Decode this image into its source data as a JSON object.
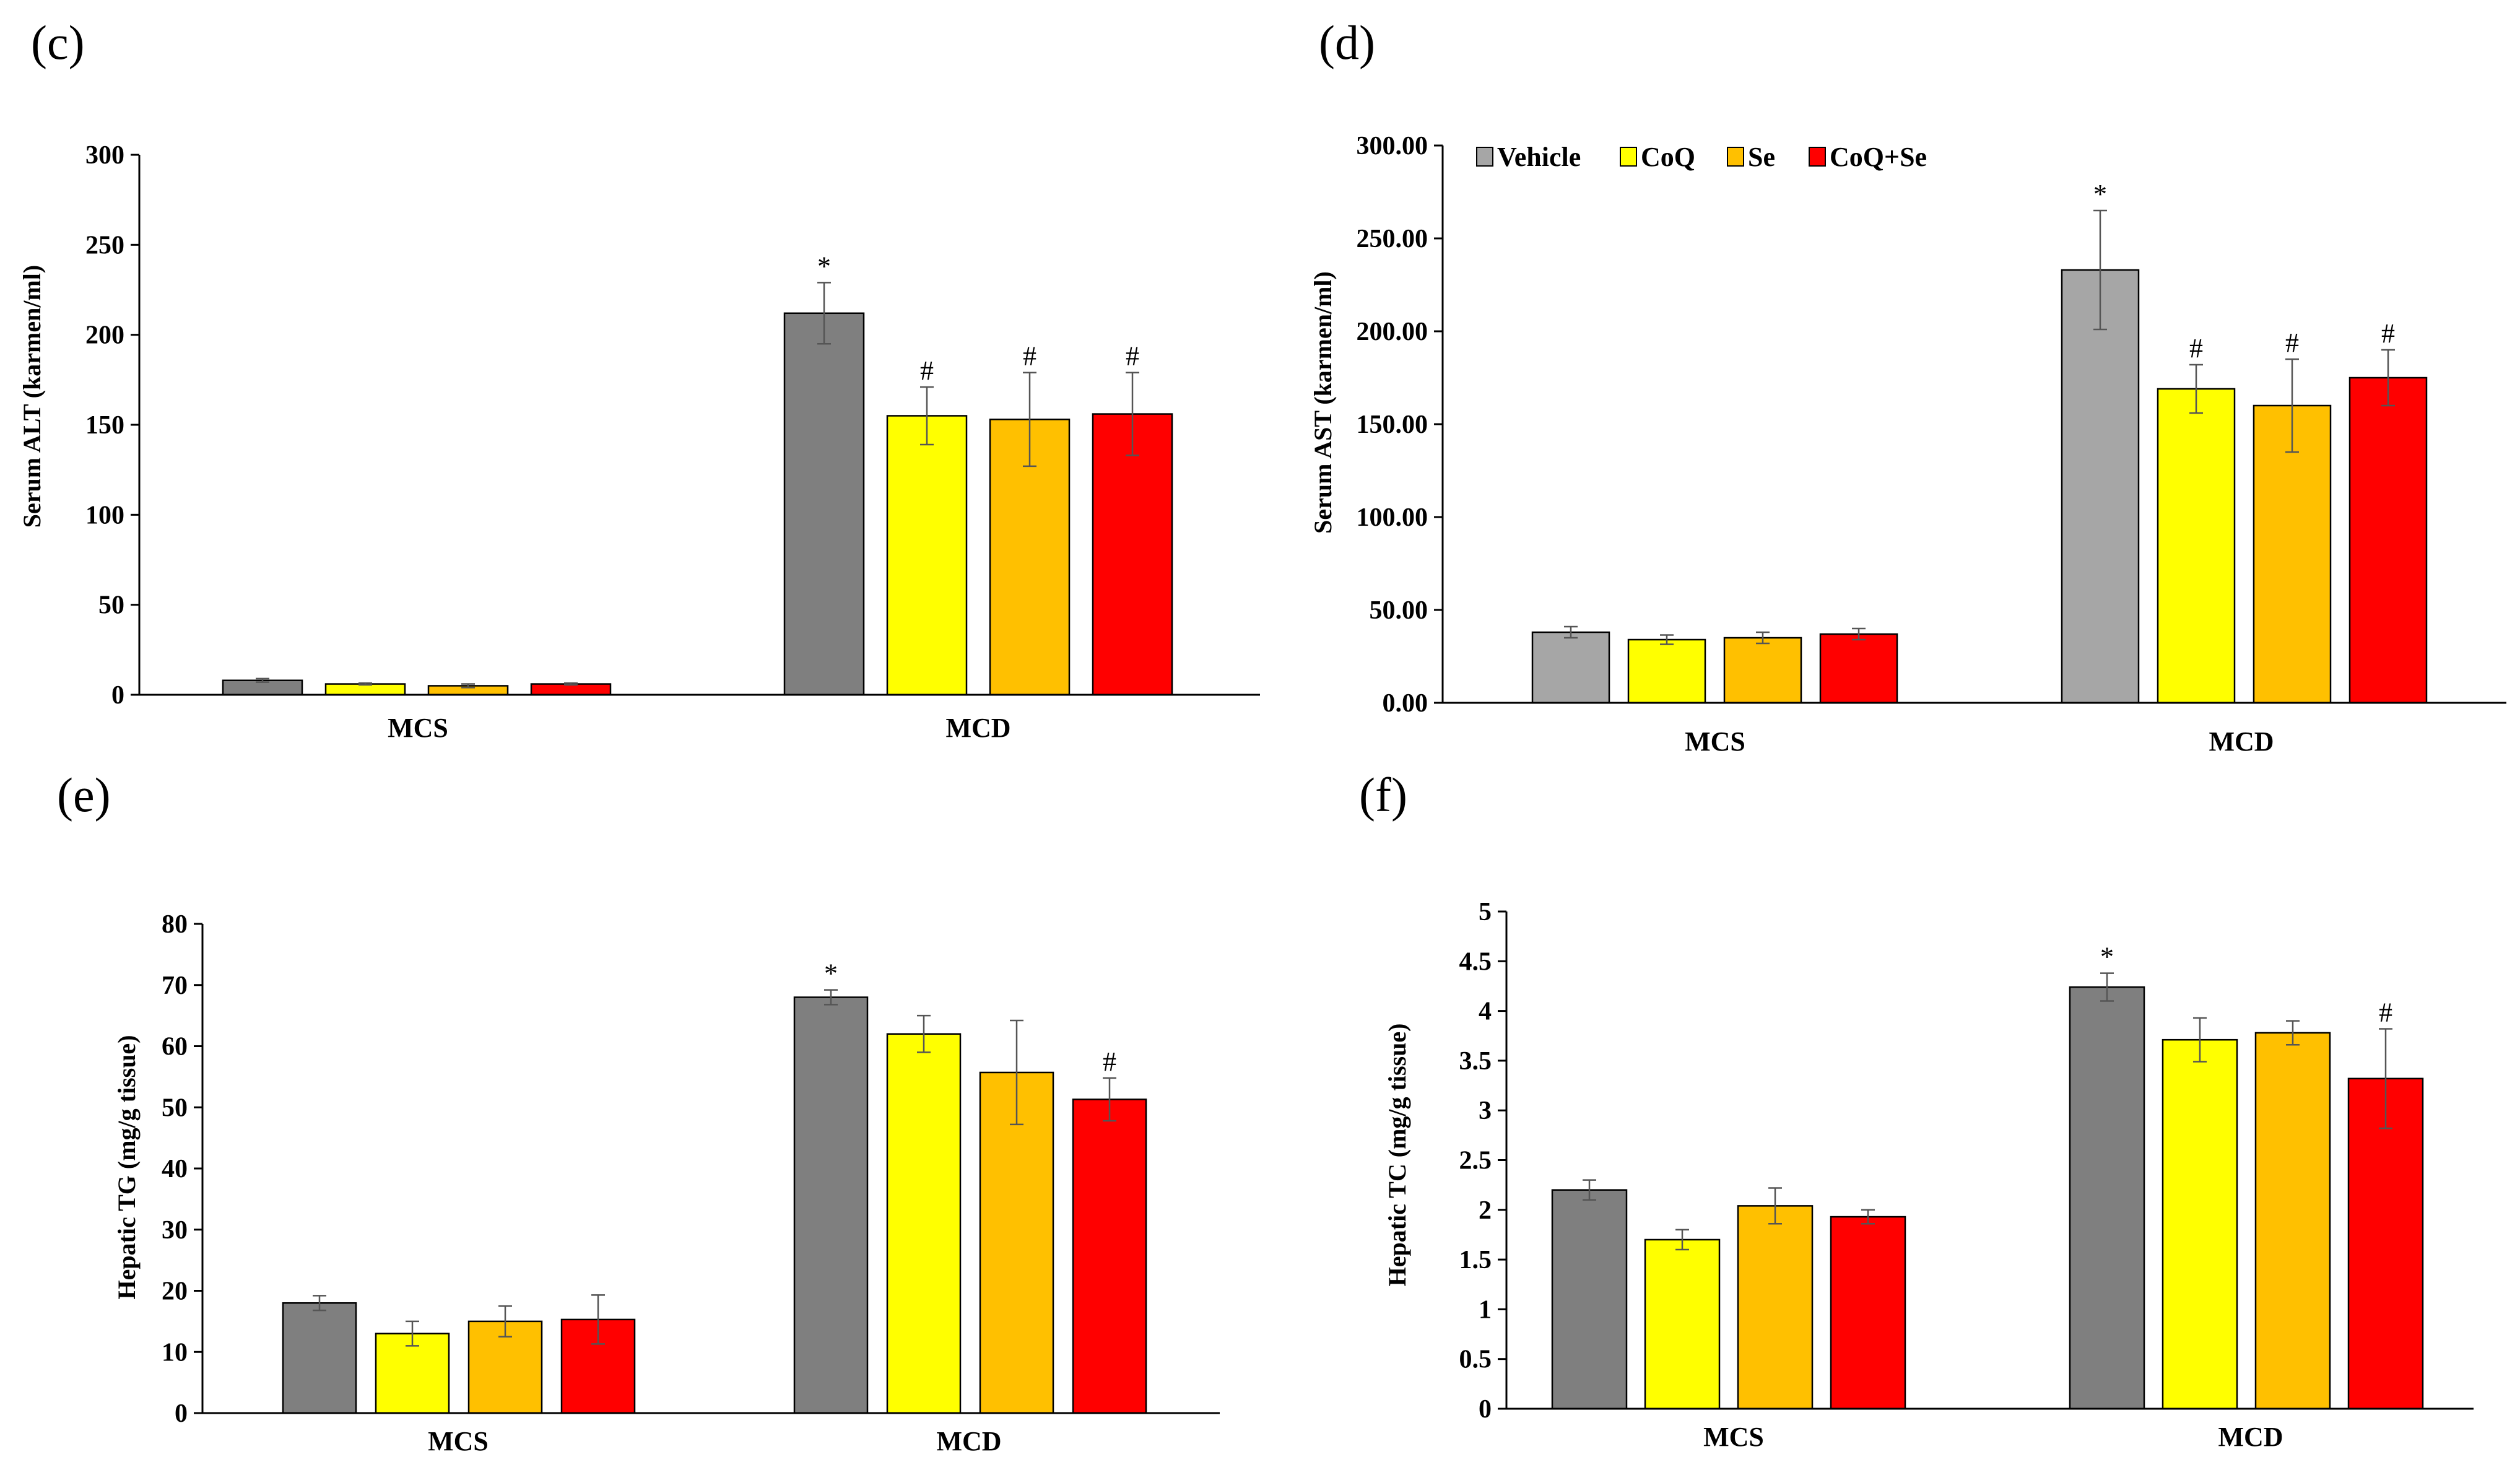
{
  "colors": {
    "vehicle_dark": "#7f7f7f",
    "vehicle_light": "#a6a6a6",
    "coq": "#ffff00",
    "se": "#ffc000",
    "coq_se": "#ff0000",
    "axis": "#000000",
    "error": "#555555"
  },
  "chart_data": [
    {
      "panel": "(c)",
      "type": "bar",
      "title": "",
      "xlabel": "",
      "ylabel": "Serum ALT (karmen/ml)",
      "ylim": [
        0,
        300
      ],
      "yticks": [
        "0",
        "50",
        "100",
        "150",
        "200",
        "250",
        "300"
      ],
      "categories": [
        "MCS",
        "MCD"
      ],
      "legend": false,
      "series": [
        {
          "name": "Vehicle",
          "color_key": "vehicle_dark",
          "values": [
            8,
            212
          ],
          "errors": [
            1,
            17
          ],
          "marks": [
            "",
            "*"
          ]
        },
        {
          "name": "CoQ",
          "color_key": "coq",
          "values": [
            6,
            155
          ],
          "errors": [
            0.5,
            16
          ],
          "marks": [
            "",
            "#"
          ]
        },
        {
          "name": "Se",
          "color_key": "se",
          "values": [
            5,
            153
          ],
          "errors": [
            1,
            26
          ],
          "marks": [
            "",
            "#"
          ]
        },
        {
          "name": "CoQ+Se",
          "color_key": "coq_se",
          "values": [
            6,
            156
          ],
          "errors": [
            0.5,
            23
          ],
          "marks": [
            "",
            "#"
          ]
        }
      ]
    },
    {
      "panel": "(d)",
      "type": "bar",
      "title": "",
      "xlabel": "",
      "ylabel": "Serum AST (karmen/ml)",
      "ylim": [
        0,
        300
      ],
      "yticks": [
        "0.00",
        "50.00",
        "100.00",
        "150.00",
        "200.00",
        "250.00",
        "300.00"
      ],
      "categories": [
        "MCS",
        "MCD"
      ],
      "legend": true,
      "legend_position": "top-left",
      "series": [
        {
          "name": "Vehicle",
          "color_key": "vehicle_light",
          "values": [
            38,
            233
          ],
          "errors": [
            3,
            32
          ],
          "marks": [
            "",
            "*"
          ]
        },
        {
          "name": "CoQ",
          "color_key": "coq",
          "values": [
            34,
            169
          ],
          "errors": [
            2.5,
            13
          ],
          "marks": [
            "",
            "#"
          ]
        },
        {
          "name": "Se",
          "color_key": "se",
          "values": [
            35,
            160
          ],
          "errors": [
            3,
            25
          ],
          "marks": [
            "",
            "#"
          ]
        },
        {
          "name": "CoQ+Se",
          "color_key": "coq_se",
          "values": [
            37,
            175
          ],
          "errors": [
            3,
            15
          ],
          "marks": [
            "",
            "#"
          ]
        }
      ]
    },
    {
      "panel": "(e)",
      "type": "bar",
      "title": "",
      "xlabel": "",
      "ylabel": "Hepatic TG (mg/g tissue)",
      "ylim": [
        0,
        80
      ],
      "yticks": [
        "0",
        "10",
        "20",
        "30",
        "40",
        "50",
        "60",
        "70",
        "80"
      ],
      "categories": [
        "MCS",
        "MCD"
      ],
      "legend": false,
      "series": [
        {
          "name": "Vehicle",
          "color_key": "vehicle_dark",
          "values": [
            18,
            68
          ],
          "errors": [
            1.2,
            1.2
          ],
          "marks": [
            "",
            "*"
          ]
        },
        {
          "name": "CoQ",
          "color_key": "coq",
          "values": [
            13,
            62
          ],
          "errors": [
            2,
            3
          ],
          "marks": [
            "",
            ""
          ]
        },
        {
          "name": "Se",
          "color_key": "se",
          "values": [
            15,
            55.7
          ],
          "errors": [
            2.5,
            8.5
          ],
          "marks": [
            "",
            ""
          ]
        },
        {
          "name": "CoQ+Se",
          "color_key": "coq_se",
          "values": [
            15.3,
            51.3
          ],
          "errors": [
            4,
            3.5
          ],
          "marks": [
            "",
            "#"
          ]
        }
      ]
    },
    {
      "panel": "(f)",
      "type": "bar",
      "title": "",
      "xlabel": "",
      "ylabel": "Hepatic TC (mg/g tissue)",
      "ylim": [
        0,
        5
      ],
      "yticks": [
        "0",
        "0.5",
        "1",
        "1.5",
        "2",
        "2.5",
        "3",
        "3.5",
        "4",
        "4.5",
        "5"
      ],
      "categories": [
        "MCS",
        "MCD"
      ],
      "legend": false,
      "series": [
        {
          "name": "Vehicle",
          "color_key": "vehicle_dark",
          "values": [
            2.2,
            4.24
          ],
          "errors": [
            0.1,
            0.14
          ],
          "marks": [
            "",
            "*"
          ]
        },
        {
          "name": "CoQ",
          "color_key": "coq",
          "values": [
            1.7,
            3.71
          ],
          "errors": [
            0.1,
            0.22
          ],
          "marks": [
            "",
            ""
          ]
        },
        {
          "name": "Se",
          "color_key": "se",
          "values": [
            2.04,
            3.78
          ],
          "errors": [
            0.18,
            0.12
          ],
          "marks": [
            "",
            ""
          ]
        },
        {
          "name": "CoQ+Se",
          "color_key": "coq_se",
          "values": [
            1.93,
            3.32
          ],
          "errors": [
            0.07,
            0.5
          ],
          "marks": [
            "",
            "#"
          ]
        }
      ]
    }
  ]
}
